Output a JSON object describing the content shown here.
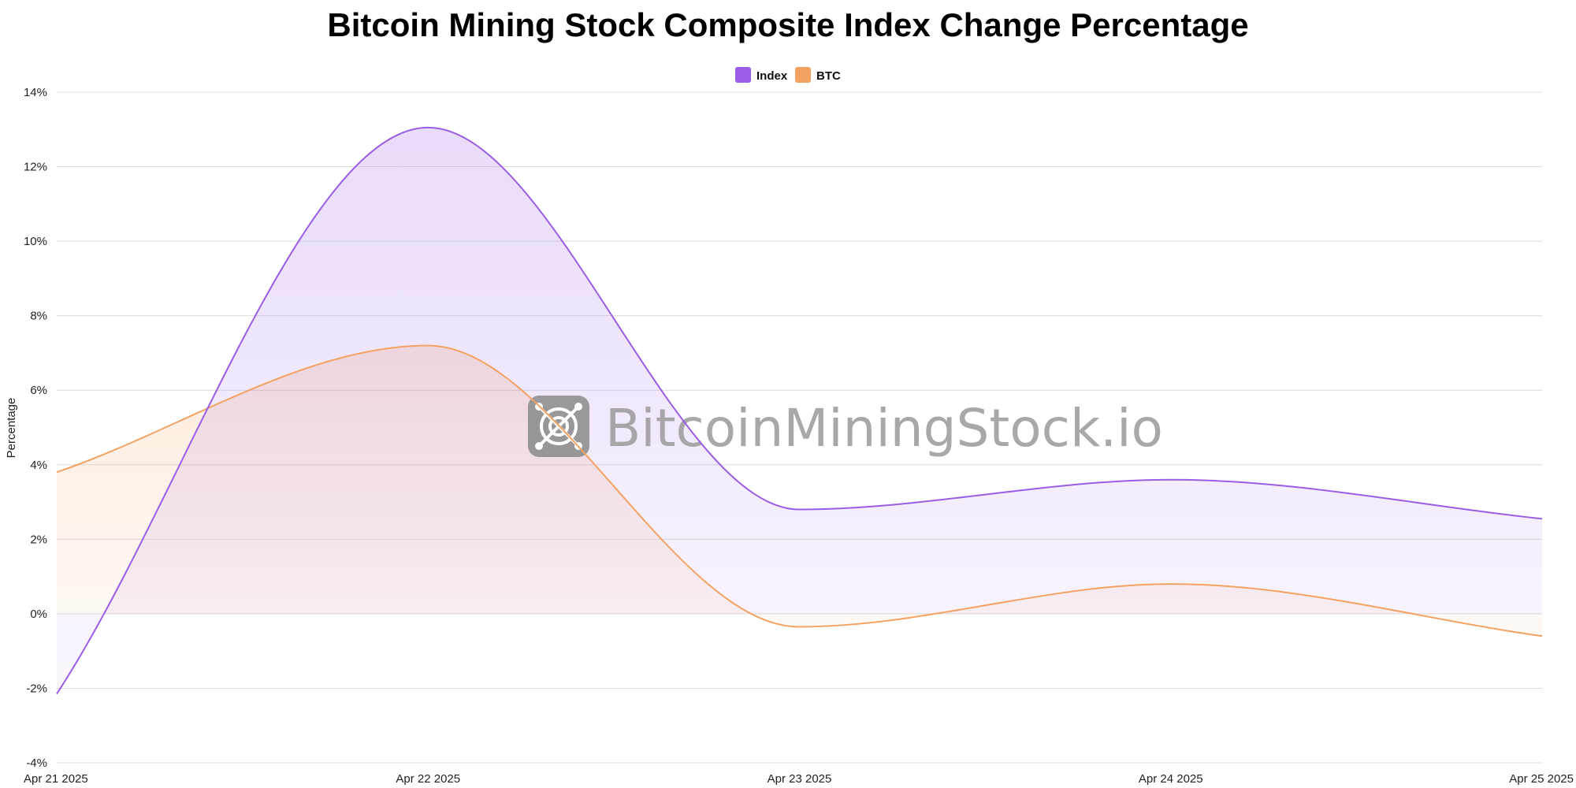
{
  "chart_data": {
    "type": "area",
    "title": "Bitcoin Mining Stock Composite Index Change Percentage",
    "xlabel": "",
    "ylabel": "Percentage",
    "categories": [
      "Apr 21 2025",
      "Apr 22 2025",
      "Apr 23 2025",
      "Apr 24 2025",
      "Apr 25 2025"
    ],
    "series": [
      {
        "name": "Index",
        "values": [
          -2.15,
          13.05,
          2.8,
          3.6,
          2.55
        ],
        "color": "#9b5de5"
      },
      {
        "name": "BTC",
        "values": [
          3.8,
          7.2,
          -0.35,
          0.8,
          -0.6
        ],
        "color": "#f4a261"
      }
    ],
    "ylim": [
      -4,
      14
    ],
    "yticks": [
      "-4%",
      "-2%",
      "0%",
      "2%",
      "4%",
      "6%",
      "8%",
      "10%",
      "12%",
      "14%"
    ],
    "grid": true,
    "legend": "top-center"
  },
  "watermark": {
    "text": "BitcoinMiningStock.io"
  }
}
